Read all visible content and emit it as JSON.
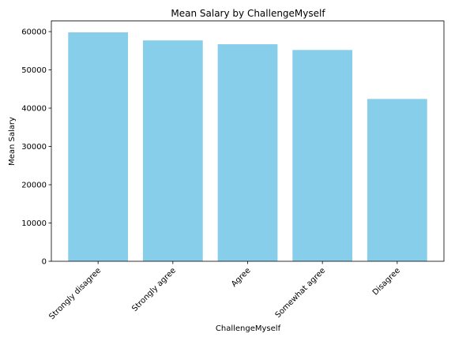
{
  "chart_data": {
    "type": "bar",
    "title": "Mean Salary by ChallengeMyself",
    "xlabel": "ChallengeMyself",
    "ylabel": "Mean Salary",
    "categories": [
      "Strongly disagree",
      "Strongly agree",
      "Agree",
      "Somewhat agree",
      "Disagree"
    ],
    "values": [
      59800,
      57700,
      56700,
      55200,
      42400
    ],
    "yticks": [
      0,
      10000,
      20000,
      30000,
      40000,
      50000,
      60000
    ],
    "ylim": [
      0,
      62790
    ],
    "bar_color": "#87ceeb",
    "grid": false
  }
}
